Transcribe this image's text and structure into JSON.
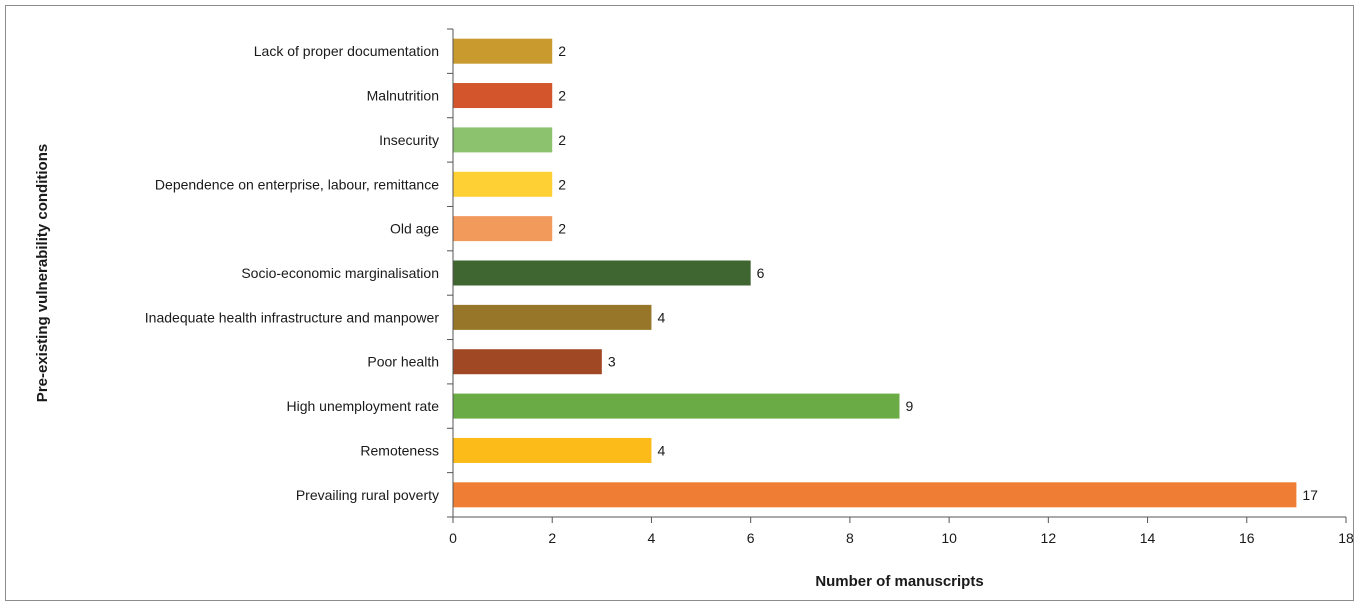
{
  "chart_data": {
    "type": "bar",
    "orientation": "horizontal",
    "categories": [
      "Lack of proper documentation",
      "Malnutrition",
      "Insecurity",
      "Dependence on enterprise, labour, remittance",
      "Old age",
      "Socio-economic marginalisation",
      "Inadequate health infrastructure and manpower",
      "Poor health",
      "High unemployment rate",
      "Remoteness",
      "Prevailing rural poverty"
    ],
    "values": [
      2,
      2,
      2,
      2,
      2,
      6,
      4,
      3,
      9,
      4,
      17
    ],
    "data_labels": [
      "2",
      "2",
      "2",
      "2",
      "2",
      "6",
      "4",
      "3",
      "9",
      "4",
      "17"
    ],
    "colors": [
      "#C99A2E",
      "#D2552B",
      "#8CC26E",
      "#FFD033",
      "#F2995C",
      "#3F6530",
      "#987629",
      "#A04823",
      "#6BAB45",
      "#FCBB18",
      "#EF7D33"
    ],
    "xlabel": "Number of manuscripts",
    "ylabel": "Pre-existing vulnerability conditions",
    "xlim": [
      0,
      18
    ],
    "xticks": [
      "0",
      "2",
      "4",
      "6",
      "8",
      "10",
      "12",
      "14",
      "16",
      "18"
    ],
    "grid": false,
    "legend": "none"
  }
}
